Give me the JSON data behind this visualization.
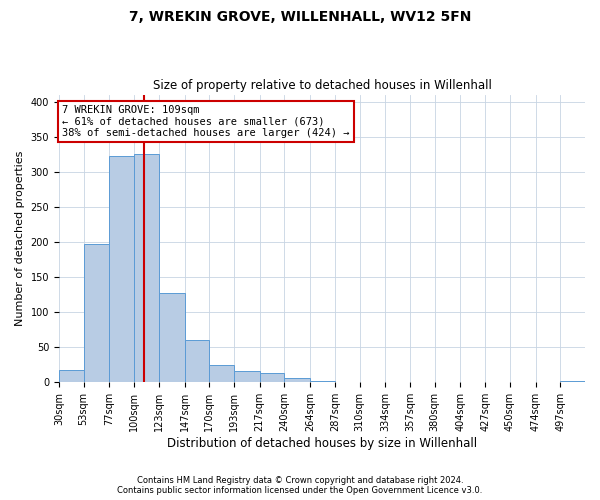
{
  "title": "7, WREKIN GROVE, WILLENHALL, WV12 5FN",
  "subtitle": "Size of property relative to detached houses in Willenhall",
  "xlabel": "Distribution of detached houses by size in Willenhall",
  "ylabel": "Number of detached properties",
  "bin_labels": [
    "30sqm",
    "53sqm",
    "77sqm",
    "100sqm",
    "123sqm",
    "147sqm",
    "170sqm",
    "193sqm",
    "217sqm",
    "240sqm",
    "264sqm",
    "287sqm",
    "310sqm",
    "334sqm",
    "357sqm",
    "380sqm",
    "404sqm",
    "427sqm",
    "450sqm",
    "474sqm",
    "497sqm"
  ],
  "bar_heights": [
    18,
    197,
    322,
    326,
    128,
    60,
    25,
    16,
    13,
    6,
    2,
    1,
    1,
    0,
    0,
    0,
    0,
    1,
    0,
    1,
    2
  ],
  "bar_color": "#b8cce4",
  "bar_edge_color": "#5b9bd5",
  "property_value": 109,
  "vline_color": "#cc0000",
  "annotation_title": "7 WREKIN GROVE: 109sqm",
  "annotation_line1": "← 61% of detached houses are smaller (673)",
  "annotation_line2": "38% of semi-detached houses are larger (424) →",
  "annotation_box_color": "#ffffff",
  "annotation_box_edge_color": "#cc0000",
  "ylim": [
    0,
    410
  ],
  "yticks": [
    0,
    50,
    100,
    150,
    200,
    250,
    300,
    350,
    400
  ],
  "footnote1": "Contains HM Land Registry data © Crown copyright and database right 2024.",
  "footnote2": "Contains public sector information licensed under the Open Government Licence v3.0.",
  "bin_edges": [
    30,
    53,
    77,
    100,
    123,
    147,
    170,
    193,
    217,
    240,
    264,
    287,
    310,
    334,
    357,
    380,
    404,
    427,
    450,
    474,
    497,
    520
  ],
  "background_color": "#ffffff",
  "grid_color": "#c8d4e3",
  "title_fontsize": 10,
  "subtitle_fontsize": 8.5,
  "ylabel_fontsize": 8,
  "xlabel_fontsize": 8.5,
  "tick_fontsize": 7,
  "annot_fontsize": 7.5,
  "footnote_fontsize": 6
}
